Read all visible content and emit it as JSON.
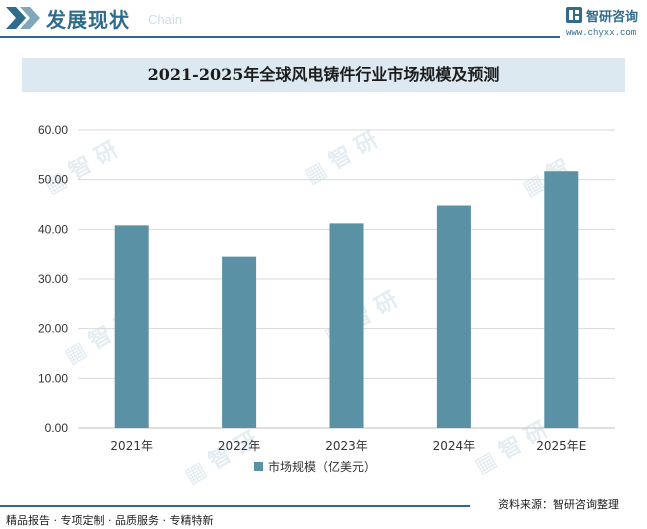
{
  "header": {
    "section_title": "发展现状",
    "section_sub": "Chain",
    "brand_name": "智研咨询",
    "brand_url": "www.chyxx.com"
  },
  "colors": {
    "accent": "#2f6c8c",
    "bar": "#5b91a5",
    "title_band": "#dce9f1"
  },
  "chart_data": {
    "type": "bar",
    "title": "2021-2025年全球风电铸件行业市场规模及预测",
    "categories": [
      "2021年",
      "2022年",
      "2023年",
      "2024年",
      "2025年E"
    ],
    "series": [
      {
        "name": "市场规模（亿美元）",
        "values": [
          40.8,
          34.5,
          41.2,
          44.8,
          51.7
        ]
      }
    ],
    "yticks": [
      "0.00",
      "10.00",
      "20.00",
      "30.00",
      "40.00",
      "50.00",
      "60.00"
    ],
    "ylim": [
      0,
      60
    ],
    "grid": true,
    "legend_position": "bottom"
  },
  "footer": {
    "tags": "精品报告 · 专项定制 · 品质服务 · 专精特新",
    "source": "资料来源：智研咨询整理"
  }
}
